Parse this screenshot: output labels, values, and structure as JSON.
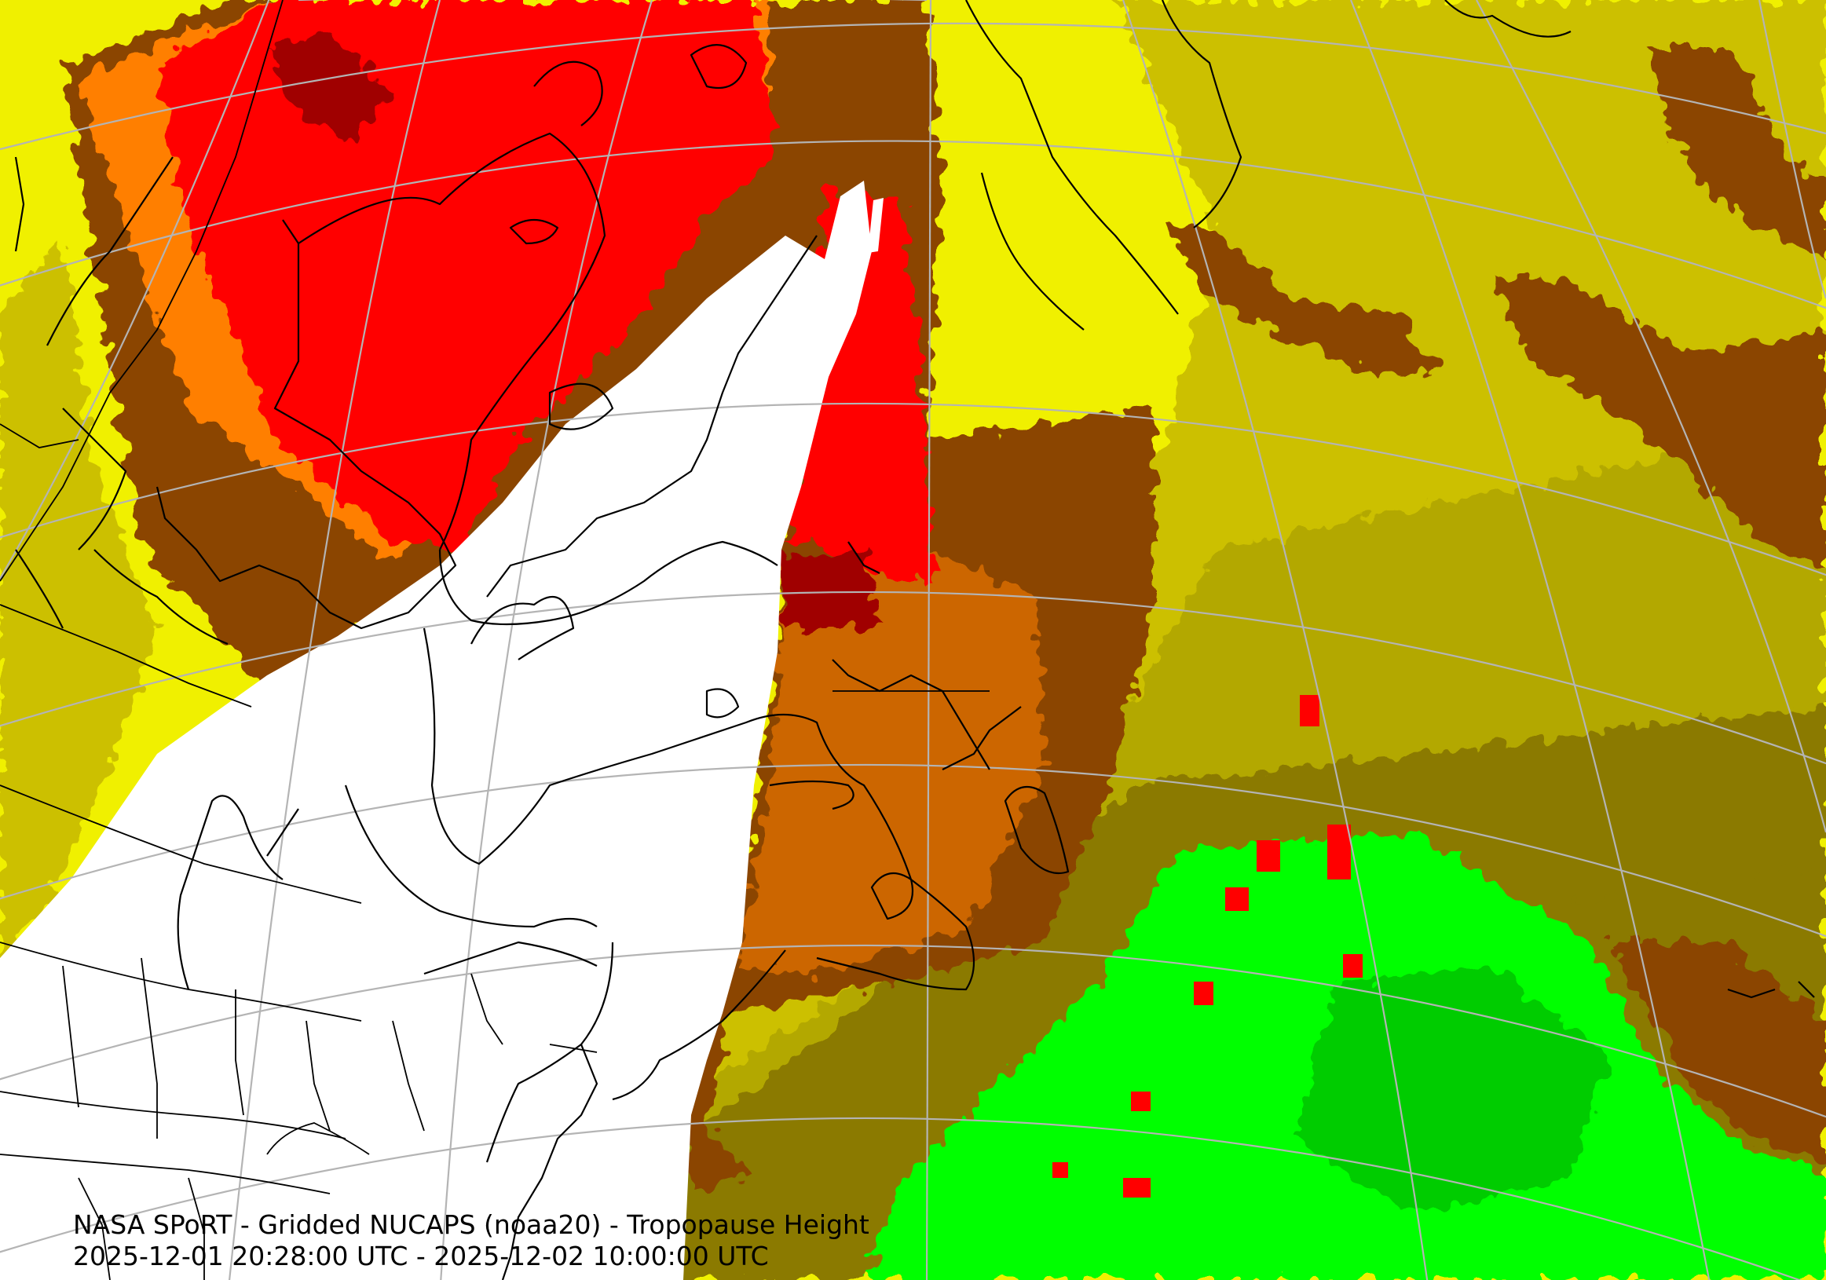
{
  "caption": {
    "title": "NASA SPoRT - Gridded NUCAPS (noaa20) - Tropopause Height",
    "time_range": "2025-12-01 20:28:00 UTC - 2025-12-02 10:00:00 UTC"
  },
  "colors": {
    "no_data": "#ffffff",
    "dark_red": "#a00000",
    "red": "#ff0000",
    "orange": "#ff7f00",
    "light_brown": "#cc6600",
    "brown": "#8b4500",
    "olive_brown": "#8b7a00",
    "dark_yellow": "#b3a800",
    "khaki": "#ccc000",
    "yellow": "#f0f000",
    "green": "#00ff00",
    "dark_green": "#00cc00",
    "graticule": "#b4b4b4",
    "coastline": "#000000"
  }
}
